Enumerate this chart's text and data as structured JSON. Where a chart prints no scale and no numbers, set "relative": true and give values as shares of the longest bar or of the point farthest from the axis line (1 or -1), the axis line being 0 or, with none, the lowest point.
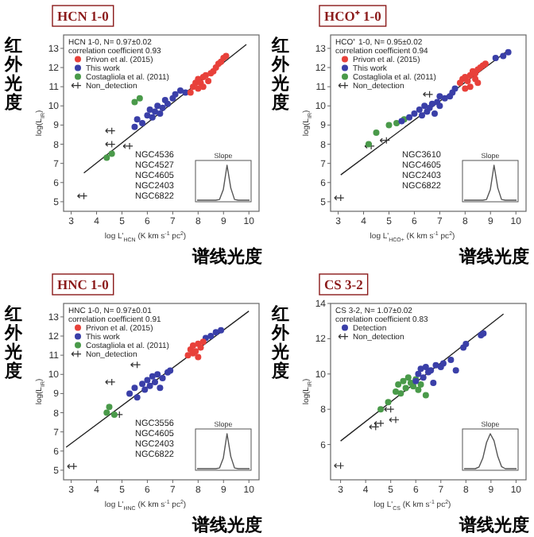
{
  "chart_data": [
    {
      "type": "scatter",
      "title": "HCN 1-0",
      "xlabel": "log L'$_{HCN}$ (K km s$^{-1}$ pc$^{2}$)",
      "ylabel": "log(L$_{IR}$)",
      "xlim": [
        2.7,
        10.4
      ],
      "ylim": [
        4.5,
        13.7
      ],
      "xticks": [
        3,
        4,
        5,
        6,
        7,
        8,
        9,
        10
      ],
      "yticks": [
        5,
        6,
        7,
        8,
        9,
        10,
        11,
        12,
        13
      ],
      "legend": "top left",
      "legend_title": "HCN 1-0, N= 0.97±0.02",
      "annotations": [
        "correlation coefficient 0.93",
        "红外光度",
        "谱线光度",
        "NGC4536",
        "NGC4527",
        "NGC4605",
        "NGC2403",
        "NGC6822"
      ],
      "series": [
        {
          "name": "Privon et al. (2015)",
          "color": "#e8413a",
          "marker": "circle",
          "x": [
            7.7,
            7.8,
            7.9,
            8.0,
            8.0,
            8.1,
            8.2,
            8.2,
            8.3,
            8.4,
            8.5,
            8.6,
            8.7,
            8.8,
            8.9,
            9.0,
            9.1
          ],
          "values": [
            10.7,
            11.0,
            11.2,
            10.9,
            11.4,
            11.2,
            11.5,
            11.0,
            11.6,
            11.3,
            11.7,
            11.8,
            12.0,
            12.2,
            12.3,
            12.5,
            12.6
          ]
        },
        {
          "name": "This work",
          "color": "#3a3fa8",
          "marker": "circle",
          "x": [
            5.5,
            5.6,
            5.8,
            6.0,
            6.1,
            6.2,
            6.3,
            6.4,
            6.5,
            6.6,
            6.7,
            6.8,
            7.0,
            7.1,
            7.3,
            7.5
          ],
          "values": [
            8.9,
            9.3,
            9.1,
            9.5,
            9.8,
            9.4,
            9.7,
            10.0,
            9.6,
            9.9,
            10.3,
            10.1,
            10.4,
            10.6,
            10.8,
            10.7
          ]
        },
        {
          "name": "Costagliola et al. (2011)",
          "color": "#4a9a4a",
          "marker": "circle",
          "x": [
            4.4,
            4.6,
            5.5,
            5.7
          ],
          "values": [
            7.3,
            7.5,
            10.2,
            10.4
          ]
        },
        {
          "name": "Non_detection",
          "color": "#333333",
          "marker": "cross",
          "x": [
            4.6,
            4.6,
            5.3,
            3.5
          ],
          "values": [
            8.7,
            8.0,
            7.9,
            5.3
          ]
        },
        {
          "type": "line",
          "color": "#222222",
          "x": [
            3.5,
            9.9
          ],
          "values": [
            6.5,
            13.2
          ]
        }
      ]
    },
    {
      "type": "scatter",
      "title": "HCO⁺ 1-0",
      "xlabel": "log L'$_{HCO+}$ (K km s$^{-1}$ pc$^{2}$)",
      "ylabel": "log(L$_{IR}$)",
      "xlim": [
        2.7,
        10.4
      ],
      "ylim": [
        4.5,
        13.7
      ],
      "xticks": [
        3,
        4,
        5,
        6,
        7,
        8,
        9,
        10
      ],
      "yticks": [
        5,
        6,
        7,
        8,
        9,
        10,
        11,
        12,
        13
      ],
      "legend": "top left",
      "legend_title": "HCO⁺ 1-0, N= 0.95±0.02",
      "annotations": [
        "correlation coefficient 0.94",
        "红外光度",
        "谱线光度",
        "NGC3610",
        "NGC4605",
        "NGC2403",
        "NGC6822"
      ],
      "series": [
        {
          "name": "Privon et al. (2015)",
          "color": "#e8413a",
          "marker": "circle",
          "x": [
            7.8,
            7.9,
            8.0,
            8.0,
            8.1,
            8.2,
            8.2,
            8.3,
            8.4,
            8.4,
            8.5,
            8.5,
            8.6,
            8.7,
            8.8
          ],
          "values": [
            11.2,
            11.4,
            10.9,
            11.5,
            11.3,
            11.6,
            11.0,
            11.8,
            11.4,
            11.7,
            11.9,
            11.2,
            12.0,
            12.1,
            12.2
          ]
        },
        {
          "name": "This work",
          "color": "#3a3fa8",
          "marker": "circle",
          "x": [
            5.5,
            5.8,
            6.0,
            6.2,
            6.3,
            6.4,
            6.5,
            6.6,
            6.7,
            6.8,
            6.9,
            7.0,
            7.0,
            7.2,
            7.4,
            7.5,
            7.6,
            9.2,
            9.5,
            9.7
          ],
          "values": [
            9.2,
            9.4,
            9.6,
            9.8,
            9.5,
            10.0,
            9.7,
            9.9,
            10.1,
            9.6,
            10.2,
            10.0,
            10.5,
            10.4,
            10.5,
            10.7,
            10.9,
            12.5,
            12.6,
            12.8
          ]
        },
        {
          "name": "Costagliola et al. (2011)",
          "color": "#4a9a4a",
          "marker": "circle",
          "x": [
            4.2,
            4.5,
            5.0,
            5.3,
            5.6
          ],
          "values": [
            8.0,
            8.6,
            9.0,
            9.1,
            9.3
          ]
        },
        {
          "name": "Non_detection",
          "color": "#333333",
          "marker": "cross",
          "x": [
            6.6,
            4.3,
            4.9,
            3.1
          ],
          "values": [
            10.6,
            7.9,
            8.2,
            5.2
          ]
        },
        {
          "type": "line",
          "color": "#222222",
          "x": [
            3.1,
            9.6
          ],
          "values": [
            6.4,
            12.8
          ]
        }
      ]
    },
    {
      "type": "scatter",
      "title": "HNC 1-0",
      "xlabel": "log L'$_{HNC}$ (K km s$^{-1}$ pc$^{2}$)",
      "ylabel": "log(L$_{IR}$)",
      "xlim": [
        2.7,
        10.4
      ],
      "ylim": [
        4.5,
        13.7
      ],
      "xticks": [
        3,
        4,
        5,
        6,
        7,
        8,
        9,
        10
      ],
      "yticks": [
        5,
        6,
        7,
        8,
        9,
        10,
        11,
        12,
        13
      ],
      "legend": "top left",
      "legend_title": "HNC 1-0, N= 0.97±0.01",
      "annotations": [
        "correlation coefficient 0.91",
        "红外光度",
        "谱线光度",
        "NGC3556",
        "NGC4605",
        "NGC2403",
        "NGC6822"
      ],
      "series": [
        {
          "name": "Privon et al. (2015)",
          "color": "#e8413a",
          "marker": "circle",
          "x": [
            7.6,
            7.7,
            7.8,
            7.8,
            7.9,
            8.0,
            8.0,
            8.1,
            8.2
          ],
          "values": [
            11.0,
            11.3,
            11.1,
            11.5,
            11.2,
            11.6,
            10.9,
            11.4,
            11.7
          ]
        },
        {
          "name": "This work",
          "color": "#3a3fa8",
          "marker": "circle",
          "x": [
            5.3,
            5.5,
            5.6,
            5.8,
            5.9,
            6.0,
            6.1,
            6.2,
            6.3,
            6.4,
            6.5,
            6.6,
            6.8,
            6.9,
            8.3,
            8.5,
            8.7,
            8.9
          ],
          "values": [
            9.0,
            9.3,
            8.8,
            9.5,
            9.2,
            9.7,
            9.4,
            9.9,
            9.6,
            10.0,
            9.3,
            9.8,
            10.1,
            10.2,
            11.9,
            12.0,
            12.2,
            12.3
          ]
        },
        {
          "name": "Costagliola et al. (2011)",
          "color": "#4a9a4a",
          "marker": "circle",
          "x": [
            4.4,
            4.5,
            4.7
          ],
          "values": [
            8.0,
            8.3,
            7.9
          ]
        },
        {
          "name": "Non_detection",
          "color": "#333333",
          "marker": "cross",
          "x": [
            5.6,
            4.9,
            3.1,
            4.6
          ],
          "values": [
            10.5,
            7.9,
            5.2,
            9.6
          ]
        },
        {
          "type": "line",
          "color": "#222222",
          "x": [
            2.8,
            10.0
          ],
          "values": [
            6.2,
            13.3
          ]
        }
      ]
    },
    {
      "type": "scatter",
      "title": "CS 3-2",
      "xlabel": "log L'$_{CS}$ (K km s$^{-1}$ pc$^{2}$)",
      "ylabel": "log(L$_{IR}$)",
      "xlim": [
        2.6,
        10.4
      ],
      "ylim": [
        4,
        14
      ],
      "xticks": [
        3,
        4,
        5,
        6,
        7,
        8,
        9,
        10
      ],
      "yticks": [
        6,
        8,
        10,
        12,
        14
      ],
      "legend": "top left",
      "legend_title": "CS 3-2, N= 1.07±0.02",
      "annotations": [
        "correlation coefficient 0.83",
        "红外光度",
        "谱线光度"
      ],
      "series": [
        {
          "name": "Detection",
          "color": "#3a3fa8",
          "marker": "circle",
          "x": [
            6.0,
            6.1,
            6.2,
            6.3,
            6.4,
            6.5,
            6.6,
            6.7,
            6.8,
            7.0,
            7.1,
            7.4,
            7.6,
            7.9,
            8.0,
            8.6,
            8.7
          ],
          "values": [
            9.6,
            10.0,
            10.3,
            9.8,
            10.4,
            10.1,
            10.2,
            9.5,
            10.5,
            10.4,
            10.6,
            10.8,
            10.2,
            11.5,
            11.7,
            12.2,
            12.3
          ]
        },
        {
          "color": "#4a9a4a",
          "marker": "circle",
          "x": [
            5.2,
            5.3,
            5.4,
            5.5,
            5.6,
            5.7,
            5.8,
            5.9,
            6.0,
            6.1,
            6.2,
            6.4,
            4.9,
            4.6
          ],
          "values": [
            9.0,
            9.4,
            8.9,
            9.6,
            9.2,
            9.8,
            9.5,
            9.3,
            9.7,
            9.1,
            9.4,
            8.8,
            8.4,
            8.0
          ]
        },
        {
          "name": "Non_detection",
          "color": "#333333",
          "marker": "cross",
          "x": [
            4.6,
            5.2,
            3.0,
            5.0,
            4.4
          ],
          "values": [
            7.2,
            7.4,
            4.8,
            8.0,
            7.0
          ]
        },
        {
          "type": "line",
          "color": "#222222",
          "x": [
            3.0,
            9.5
          ],
          "values": [
            6.2,
            13.4
          ]
        }
      ]
    },
    {
      "type": "line",
      "title": "Slope",
      "relative": true,
      "color": "#555555",
      "categories": [
        null,
        null,
        null,
        null,
        null,
        null,
        null,
        null,
        null,
        null,
        null,
        null,
        null,
        null,
        null
      ],
      "values": [
        0,
        0,
        0,
        0,
        0,
        0,
        0.02,
        0.3,
        1,
        0.35,
        0.02,
        0,
        0,
        0,
        0
      ]
    },
    {
      "type": "line",
      "title": "Slope",
      "relative": true,
      "color": "#555555",
      "categories": [
        null,
        null,
        null,
        null,
        null,
        null,
        null,
        null,
        null,
        null,
        null,
        null,
        null,
        null,
        null
      ],
      "values": [
        0,
        0,
        0,
        0,
        0,
        0,
        0.02,
        0.3,
        1,
        0.35,
        0.02,
        0,
        0,
        0,
        0
      ]
    },
    {
      "type": "line",
      "title": "Slope",
      "relative": true,
      "color": "#555555",
      "categories": [
        null,
        null,
        null,
        null,
        null,
        null,
        null,
        null,
        null,
        null,
        null,
        null,
        null,
        null,
        null
      ],
      "values": [
        0,
        0,
        0,
        0,
        0,
        0,
        0.02,
        0.3,
        1,
        0.35,
        0.02,
        0,
        0,
        0,
        0
      ]
    },
    {
      "type": "line",
      "title": "Slope",
      "relative": true,
      "color": "#555555",
      "categories": [
        null,
        null,
        null,
        null,
        null,
        null,
        null,
        null,
        null,
        null,
        null,
        null,
        null,
        null,
        null
      ],
      "values": [
        0,
        0,
        0,
        0,
        0.05,
        0.3,
        0.75,
        1,
        0.8,
        0.35,
        0.06,
        0,
        0,
        0,
        0
      ]
    }
  ]
}
